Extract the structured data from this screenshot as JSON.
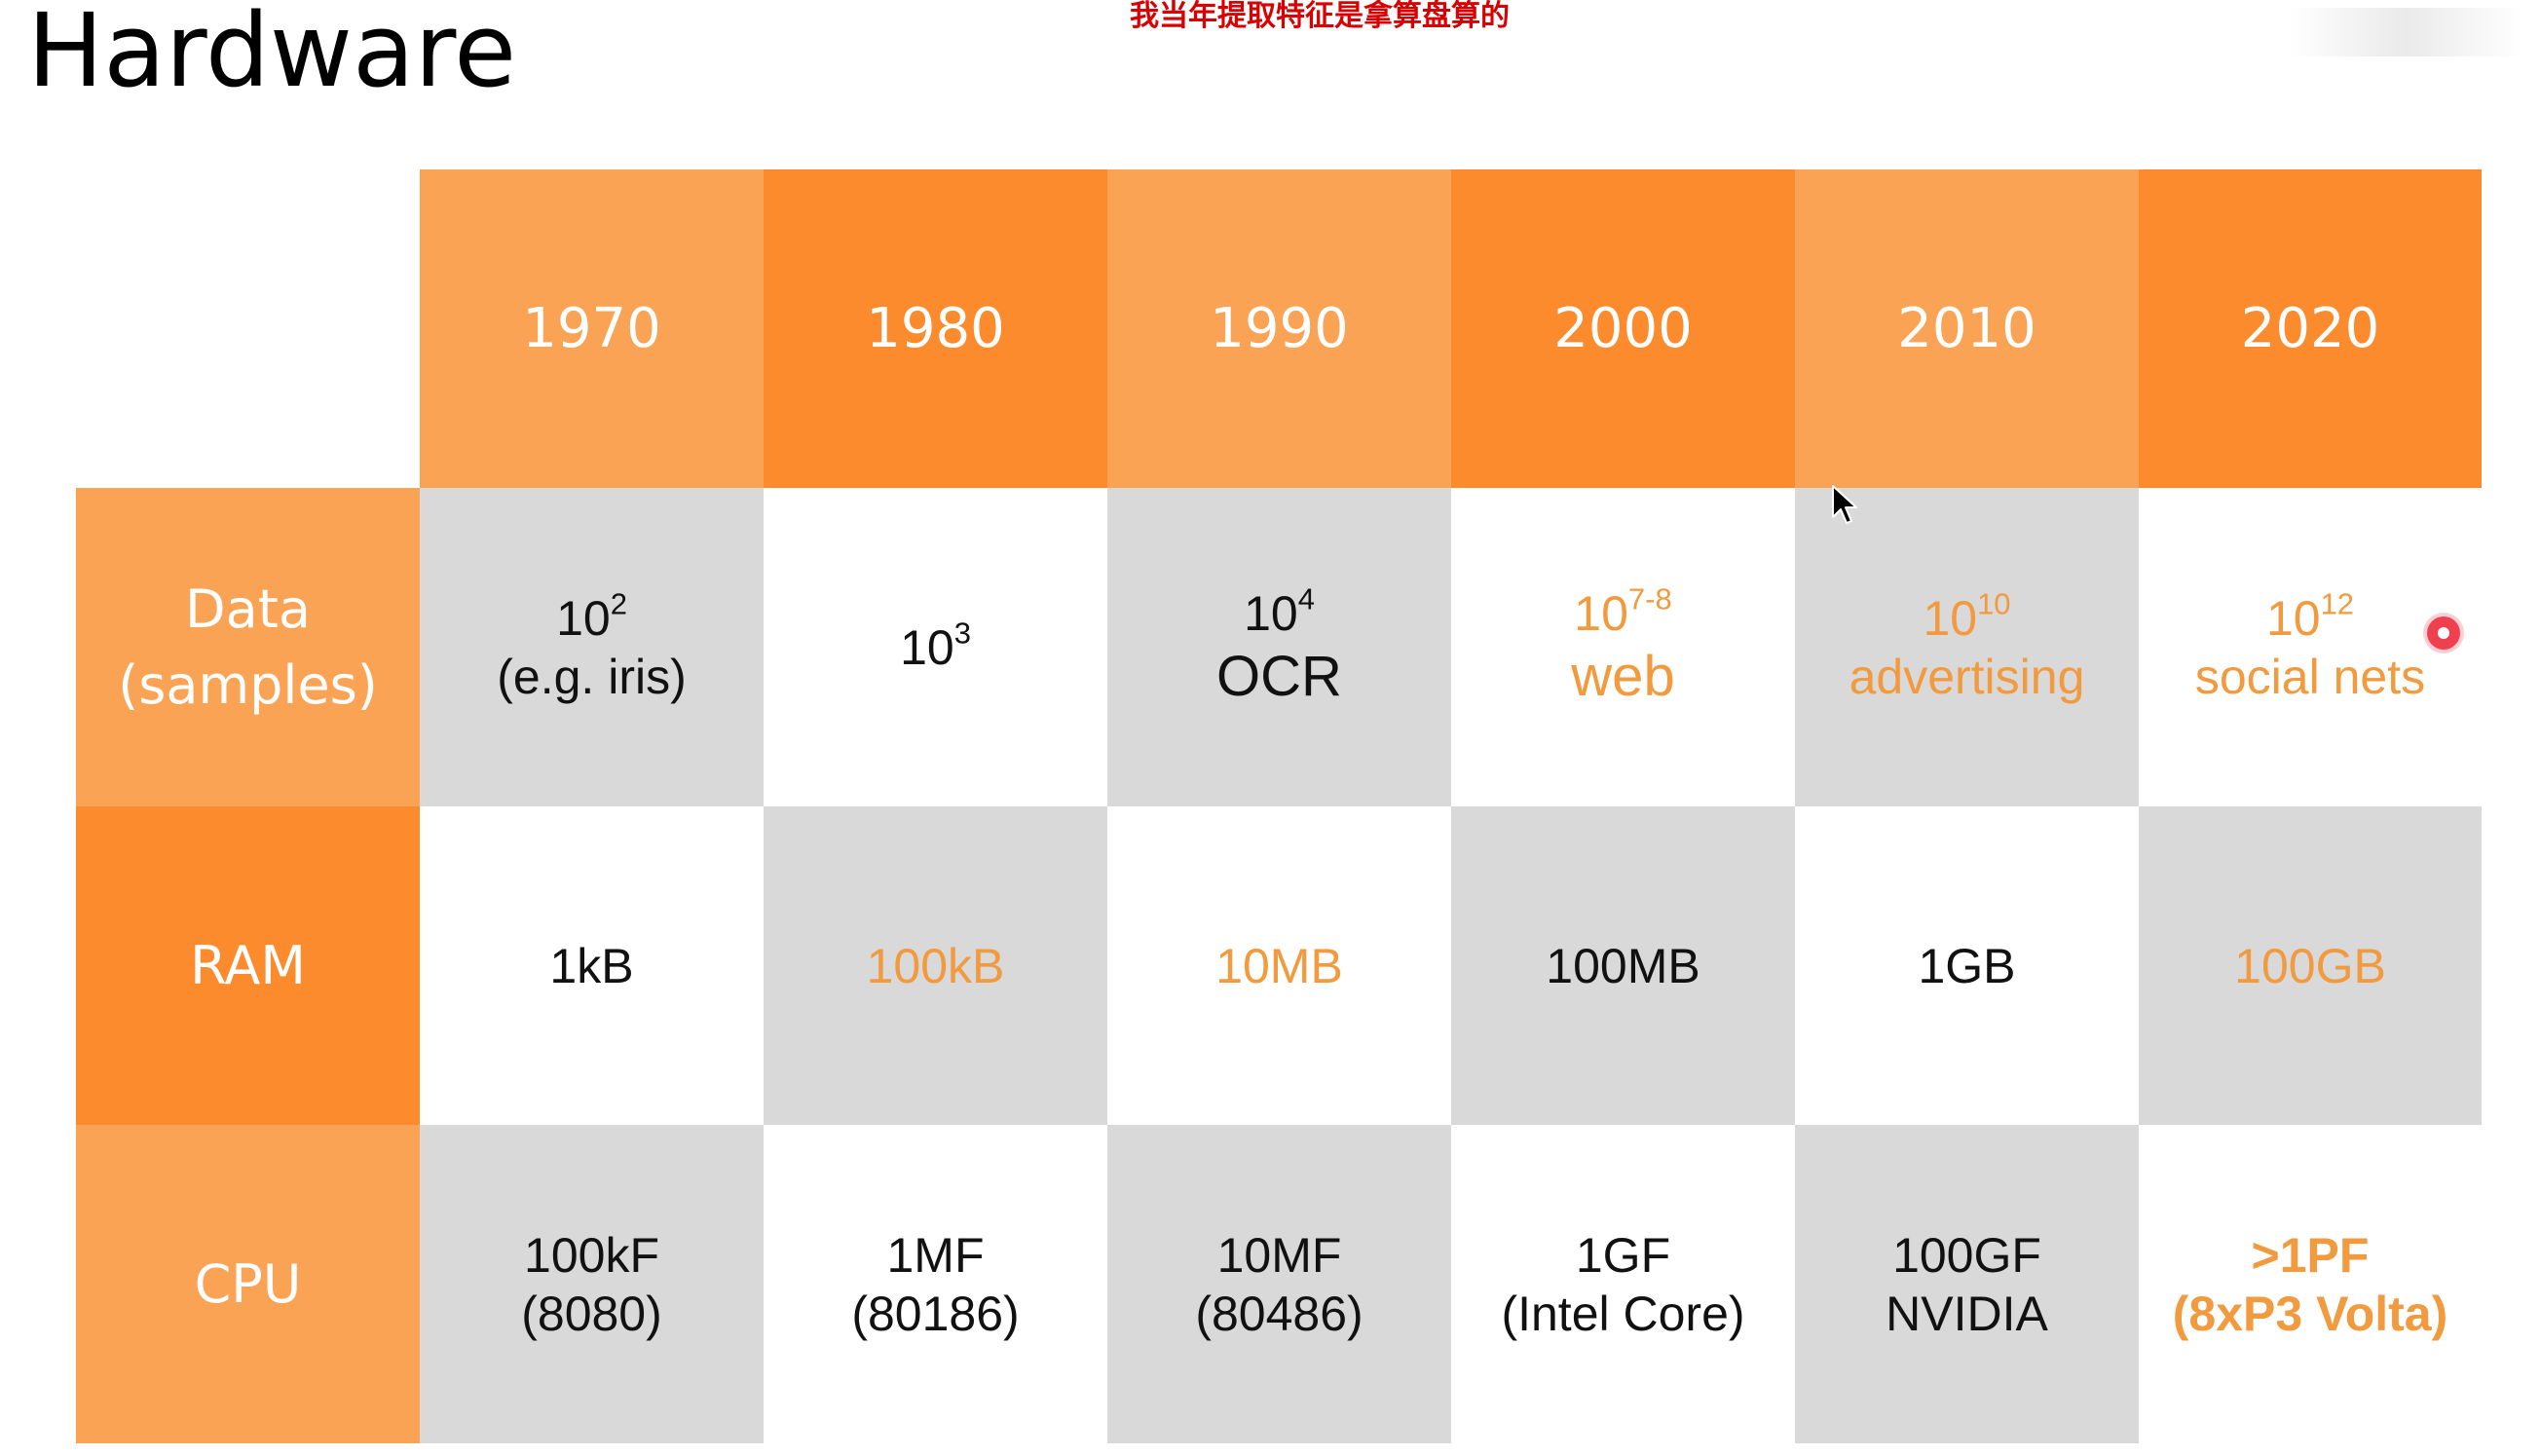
{
  "title": "Hardware",
  "subtitle": "我当年提取特征是拿算盘算的",
  "years": [
    "1970",
    "1980",
    "1990",
    "2000",
    "2010",
    "2020"
  ],
  "rows": {
    "data": {
      "label_line1": "Data",
      "label_line2": "(samples)",
      "cells": [
        {
          "base": "10",
          "exp": "2",
          "sub": "(e.g. iris)"
        },
        {
          "base": "10",
          "exp": "3",
          "sub": ""
        },
        {
          "base": "10",
          "exp": "4",
          "sub": "OCR"
        },
        {
          "base": "10",
          "exp": "7-8",
          "sub": "web"
        },
        {
          "base": "10",
          "exp": "10",
          "sub": "advertising"
        },
        {
          "base": "10",
          "exp": "12",
          "sub": "social nets"
        }
      ]
    },
    "ram": {
      "label": "RAM",
      "cells": [
        "1kB",
        "100kB",
        "10MB",
        "100MB",
        "1GB",
        "100GB"
      ]
    },
    "cpu": {
      "label": "CPU",
      "cells": [
        {
          "line1": "100kF",
          "line2": "(8080)"
        },
        {
          "line1": "1MF",
          "line2": "(80186)"
        },
        {
          "line1": "10MF",
          "line2": "(80486)"
        },
        {
          "line1": "1GF",
          "line2": "(Intel Core)"
        },
        {
          "line1": "100GF",
          "line2": "NVIDIA"
        },
        {
          "line1": ">1PF",
          "line2": "(8xP3 Volta)"
        }
      ]
    }
  },
  "colors": {
    "header_light": "#fba354",
    "header_dark": "#fc8b2e",
    "cell_gray": "#d9d9d9",
    "cell_white": "#ffffff",
    "text_orange": "#f19a3e",
    "subtitle_red": "#d80000"
  }
}
